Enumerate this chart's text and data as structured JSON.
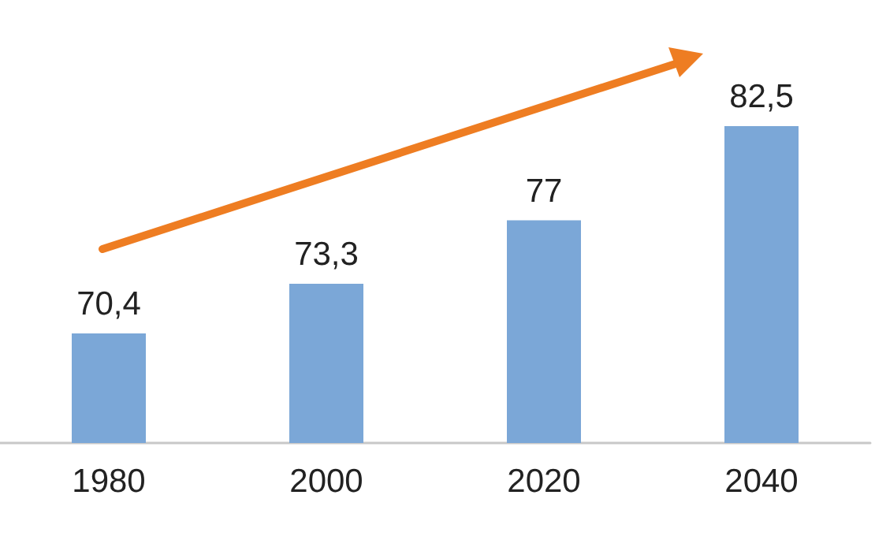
{
  "chart_data": {
    "type": "bar",
    "categories": [
      "1980",
      "2000",
      "2020",
      "2040"
    ],
    "values": [
      70.4,
      73.3,
      77,
      82.5
    ],
    "value_labels": [
      "70,4",
      "73,3",
      "77",
      "82,5"
    ],
    "color": "#7ba7d7",
    "ylim": [
      64,
      82.5
    ],
    "tick_labels": "x",
    "grid": false
  }
}
